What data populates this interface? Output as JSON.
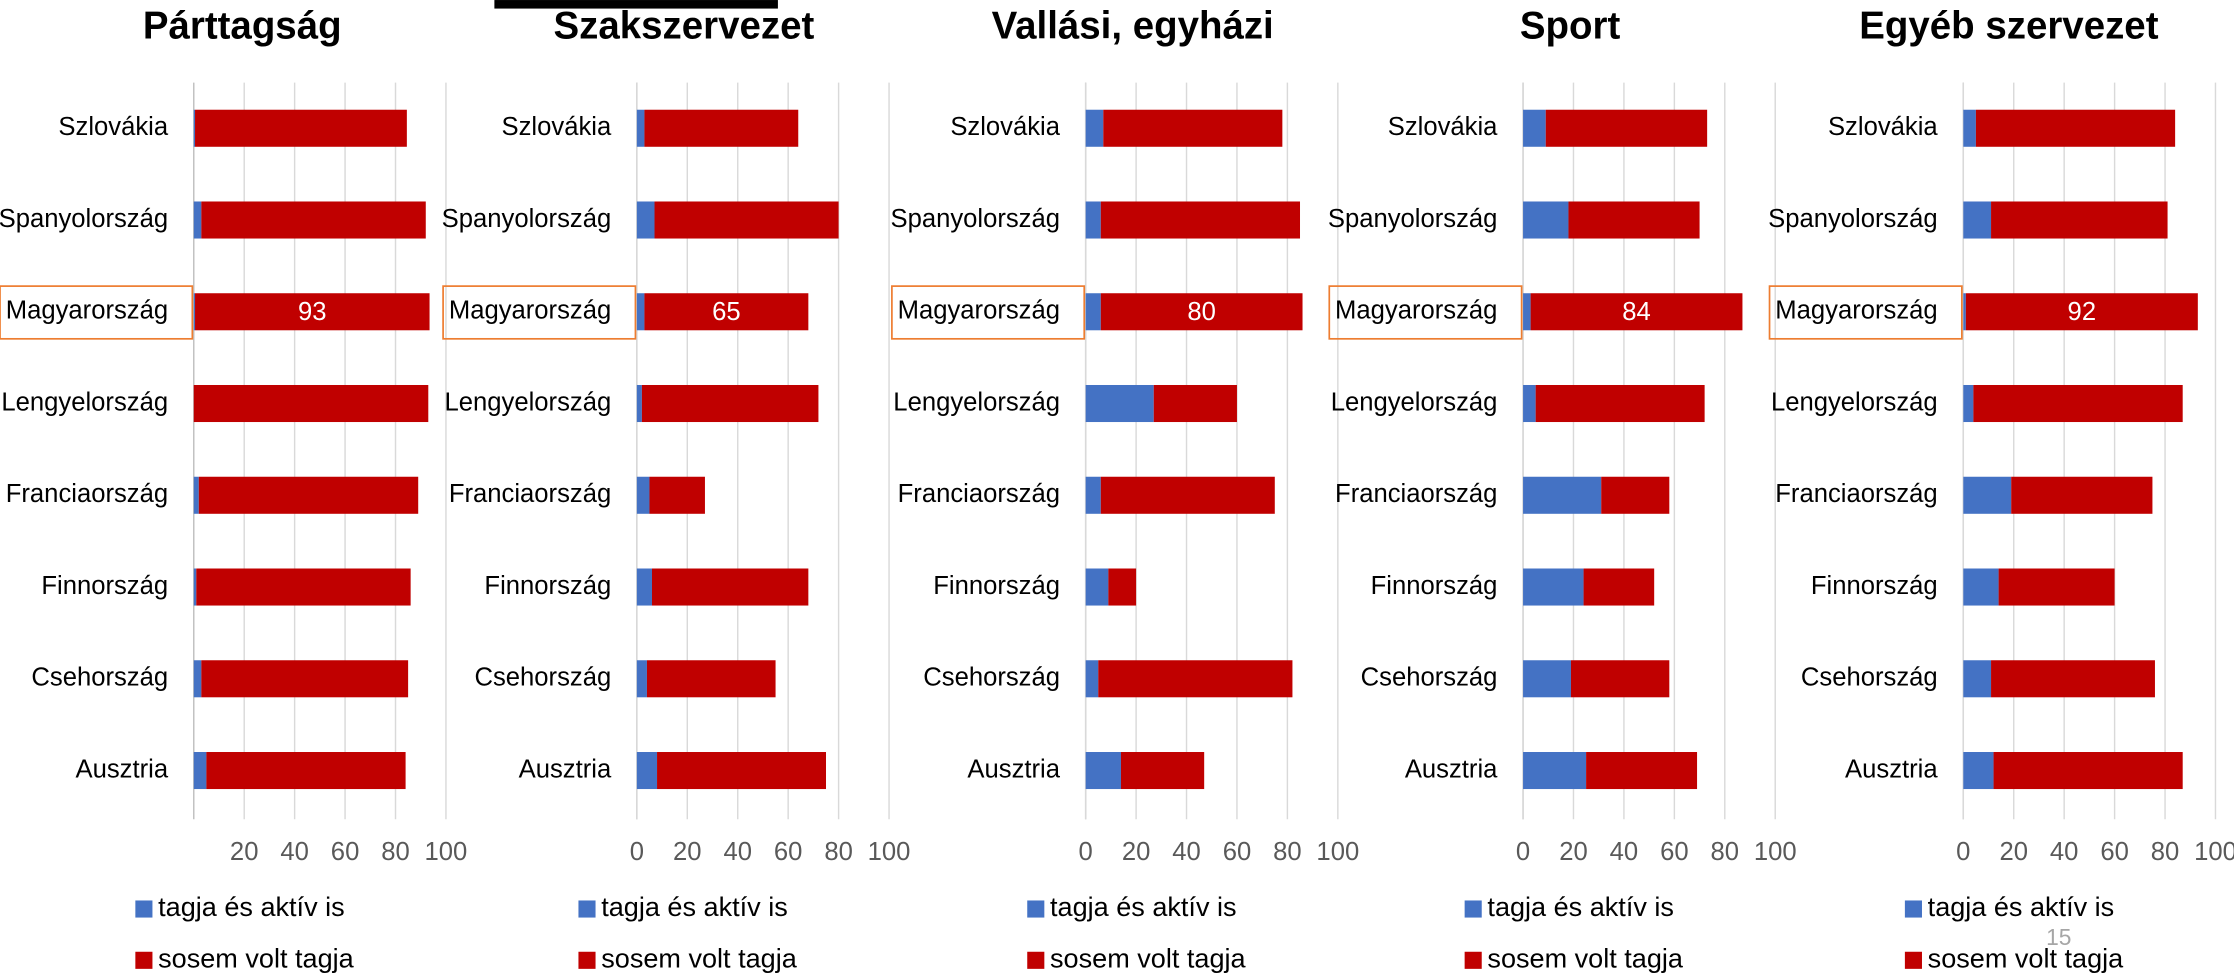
{
  "chart_data": [
    {
      "type": "bar",
      "orientation": "horizontal",
      "stacked": true,
      "title": "Párttagság",
      "categories": [
        "Szlovákia",
        "Spanyolország",
        "Magyarország",
        "Lengyelország",
        "Franciaország",
        "Finnország",
        "Csehország",
        "Ausztria"
      ],
      "series": [
        {
          "name": "tagja és aktív is",
          "color": "#4472c4",
          "values": [
            0.5,
            3,
            0.5,
            0,
            2,
            1,
            3,
            5
          ]
        },
        {
          "name": "sosem volt tagja",
          "color": "#c00000",
          "values": [
            84,
            89,
            93,
            93,
            87,
            85,
            82,
            79
          ],
          "value_labels": [
            null,
            null,
            "93",
            null,
            null,
            null,
            null,
            null
          ]
        }
      ],
      "xlim": [
        0,
        100
      ],
      "xticks": [
        20,
        40,
        60,
        80,
        100
      ],
      "grid": true,
      "legend": "bottom",
      "highlight_color": "#ed7d31"
    },
    {
      "type": "bar",
      "orientation": "horizontal",
      "stacked": true,
      "title": "Szakszervezet",
      "categories": [
        "Szlovákia",
        "Spanyolország",
        "Magyarország",
        "Lengyelország",
        "Franciaország",
        "Finnország",
        "Csehország",
        "Ausztria"
      ],
      "series": [
        {
          "name": "tagja és aktív is",
          "color": "#4472c4",
          "values": [
            3,
            7,
            3,
            2,
            5,
            6,
            4,
            8
          ]
        },
        {
          "name": "sosem volt tagja",
          "color": "#c00000",
          "values": [
            61,
            73,
            65,
            70,
            22,
            62,
            51,
            67
          ],
          "value_labels": [
            null,
            null,
            "65",
            null,
            null,
            null,
            null,
            null
          ]
        }
      ],
      "xlim": [
        0,
        100
      ],
      "xticks": [
        0,
        20,
        40,
        60,
        80,
        100
      ],
      "grid": true,
      "legend": "bottom",
      "highlight_color": "#ed7d31"
    },
    {
      "type": "bar",
      "orientation": "horizontal",
      "stacked": true,
      "title": "Vallási, egyházi",
      "categories": [
        "Szlovákia",
        "Spanyolország",
        "Magyarország",
        "Lengyelország",
        "Franciaország",
        "Finnország",
        "Csehország",
        "Ausztria"
      ],
      "series": [
        {
          "name": "tagja és aktív is",
          "color": "#4472c4",
          "values": [
            7,
            6,
            6,
            27,
            6,
            9,
            5,
            14
          ]
        },
        {
          "name": "sosem volt tagja",
          "color": "#c00000",
          "values": [
            71,
            79,
            80,
            33,
            69,
            11,
            77,
            33
          ],
          "value_labels": [
            null,
            null,
            "80",
            null,
            null,
            null,
            null,
            null
          ]
        }
      ],
      "xlim": [
        0,
        100
      ],
      "xticks": [
        0,
        20,
        40,
        60,
        80,
        100
      ],
      "grid": true,
      "legend": "bottom",
      "highlight_color": "#ed7d31"
    },
    {
      "type": "bar",
      "orientation": "horizontal",
      "stacked": true,
      "title": "Sport",
      "categories": [
        "Szlovákia",
        "Spanyolország",
        "Magyarország",
        "Lengyelország",
        "Franciaország",
        "Finnország",
        "Csehország",
        "Ausztria"
      ],
      "series": [
        {
          "name": "tagja és aktív is",
          "color": "#4472c4",
          "values": [
            9,
            18,
            3,
            5,
            31,
            24,
            19,
            25
          ]
        },
        {
          "name": "sosem volt tagja",
          "color": "#c00000",
          "values": [
            64,
            52,
            84,
            67,
            27,
            28,
            39,
            44
          ],
          "value_labels": [
            null,
            null,
            "84",
            null,
            null,
            null,
            null,
            null
          ]
        }
      ],
      "xlim": [
        0,
        100
      ],
      "xticks": [
        0,
        20,
        40,
        60,
        80,
        100
      ],
      "grid": true,
      "legend": "bottom",
      "highlight_color": "#ed7d31"
    },
    {
      "type": "bar",
      "orientation": "horizontal",
      "stacked": true,
      "title": "Egyéb szervezet",
      "categories": [
        "Szlovákia",
        "Spanyolország",
        "Magyarország",
        "Lengyelország",
        "Franciaország",
        "Finnország",
        "Csehország",
        "Ausztria"
      ],
      "series": [
        {
          "name": "tagja és aktív is",
          "color": "#4472c4",
          "values": [
            5,
            11,
            1,
            4,
            19,
            14,
            11,
            12
          ]
        },
        {
          "name": "sosem volt tagja",
          "color": "#c00000",
          "values": [
            79,
            70,
            92,
            83,
            56,
            46,
            65,
            75
          ],
          "value_labels": [
            null,
            null,
            "92",
            null,
            null,
            null,
            null,
            null
          ]
        }
      ],
      "xlim": [
        0,
        100
      ],
      "xticks": [
        0,
        20,
        40,
        60,
        80,
        100
      ],
      "grid": true,
      "legend": "bottom",
      "highlight_color": "#ed7d31"
    }
  ],
  "page_number": "15"
}
